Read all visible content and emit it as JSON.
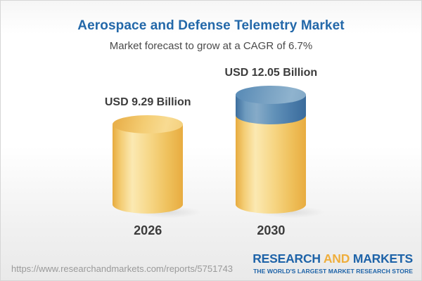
{
  "header": {
    "title": "Aerospace and Defense Telemetry Market",
    "subtitle": "Market forecast to grow at a CAGR of 6.7%"
  },
  "chart_data": {
    "type": "bar",
    "subtype": "3d-cylinder",
    "categories": [
      "2026",
      "2030"
    ],
    "values": [
      9.29,
      12.05
    ],
    "value_labels": [
      "USD 9.29 Billion",
      "USD 12.05 Billion"
    ],
    "unit": "USD Billion",
    "cagr_percent": 6.7,
    "title": "Aerospace and Defense Telemetry Market",
    "subtitle": "Market forecast to grow at a CAGR of 6.7%",
    "legend": "none",
    "axes": "none",
    "colors": {
      "bar_body": "#f3ce77",
      "bar_edge": "#e8ac40",
      "growth_cap": "#5e8cb4",
      "growth_cap_top": "#86abc8",
      "label_text": "#3c3c3c"
    }
  },
  "footer": {
    "url": "https://www.researchandmarkets.com/reports/5751743",
    "logo": {
      "word1": "RESEARCH",
      "word2": "AND",
      "word3": "MARKETS",
      "tagline": "THE WORLD'S LARGEST MARKET RESEARCH STORE",
      "blue": "#1e63a8",
      "gold": "#efae3c"
    }
  }
}
